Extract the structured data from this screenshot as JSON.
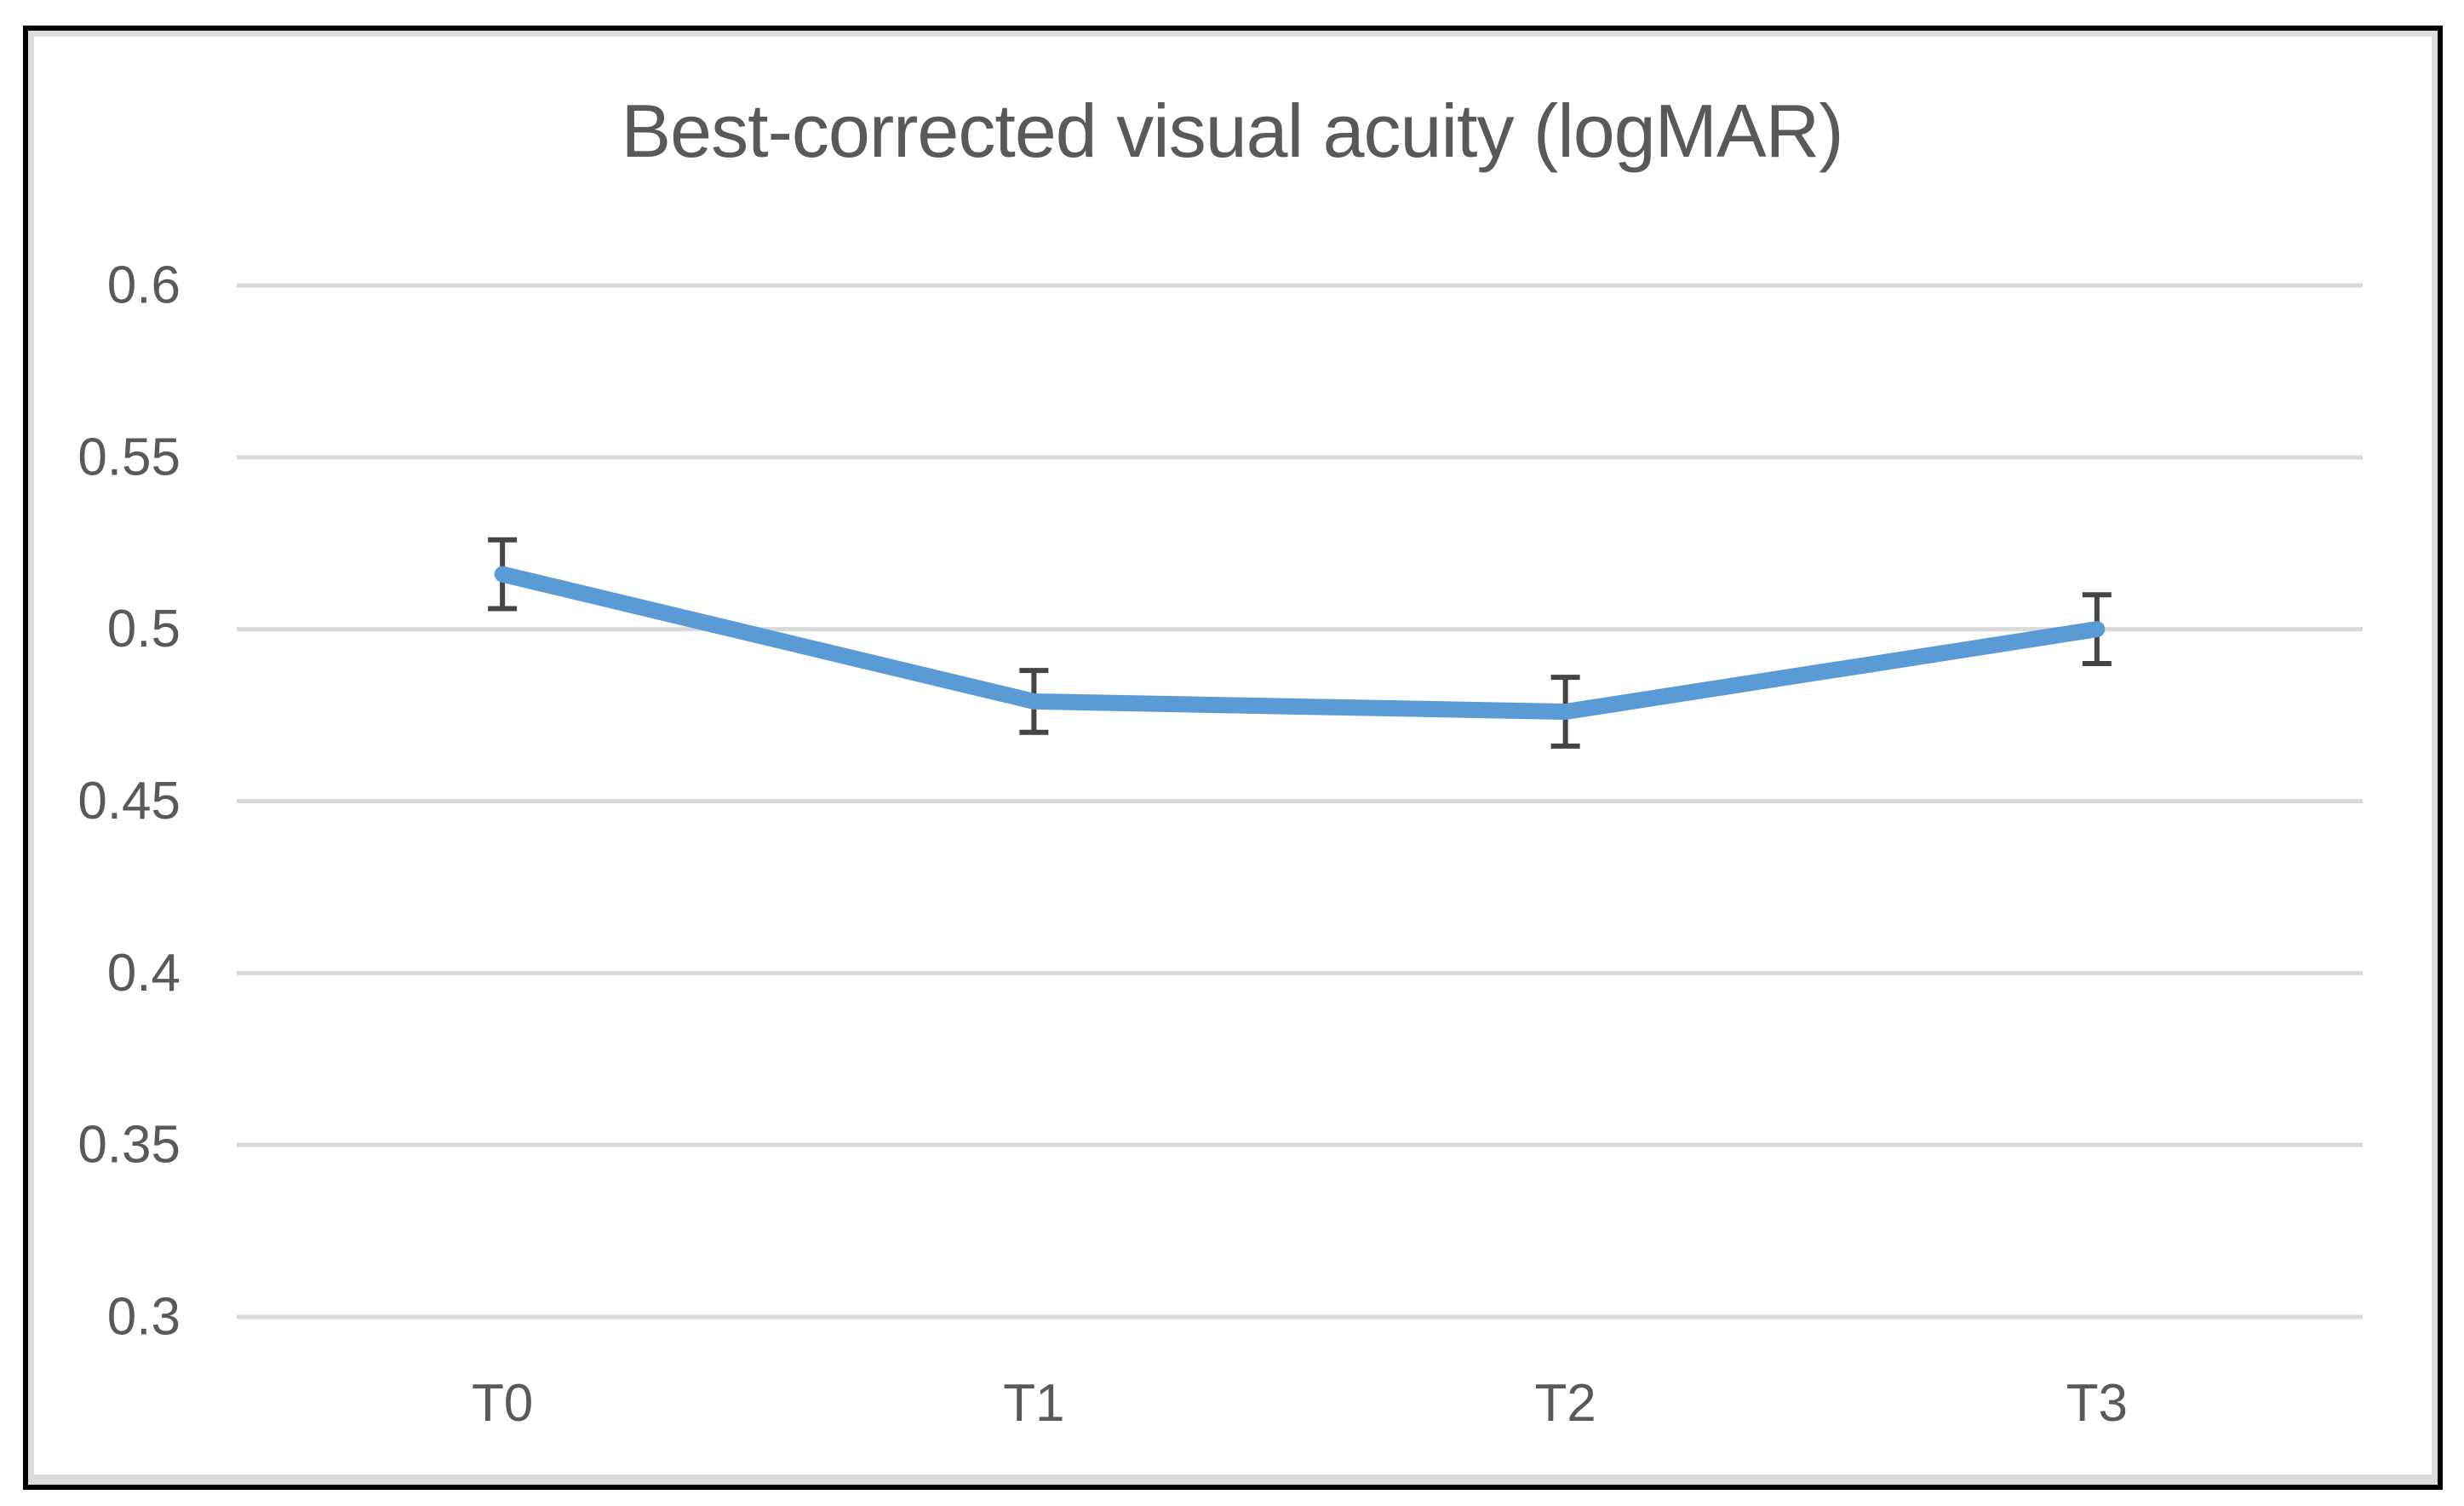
{
  "chart_data": {
    "type": "line",
    "title": "Best-corrected visual acuity (logMAR)",
    "categories": [
      "T0",
      "T1",
      "T2",
      "T3"
    ],
    "values": [
      0.516,
      0.479,
      0.476,
      0.5
    ],
    "error_bars": [
      0.01,
      0.009,
      0.01,
      0.01
    ],
    "xlabel": "",
    "ylabel": "",
    "ylim": [
      0.3,
      0.6
    ],
    "ytick_interval": 0.05,
    "ytick_labels": [
      "0.6",
      "0.55",
      "0.5",
      "0.45",
      "0.4",
      "0.35",
      "0.3"
    ],
    "grid": true,
    "legend": false,
    "line_color": "#5B9BD5",
    "error_bar_color": "#454545",
    "gridline_color": "#D9D9D9",
    "text_color": "#595959",
    "frame": {
      "border_color": "#000000",
      "inner_shadow_color": "#D9D9D9",
      "background": "#FFFFFF"
    }
  }
}
